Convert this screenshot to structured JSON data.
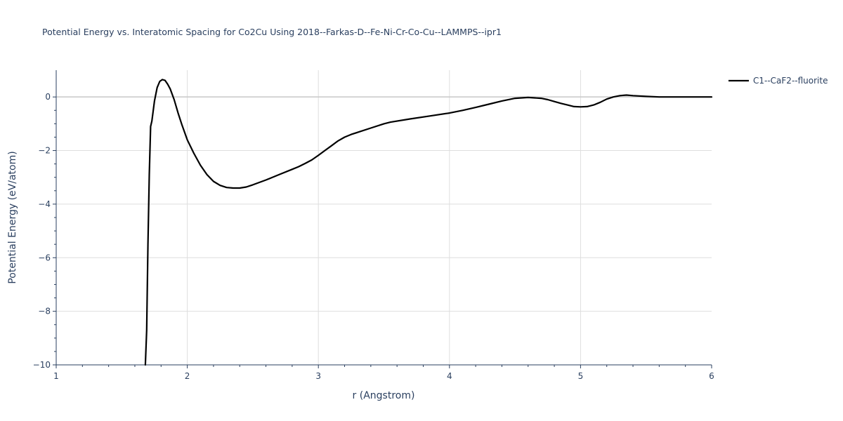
{
  "chart_data": {
    "type": "line",
    "title": "Potential Energy vs. Interatomic Spacing for Co2Cu Using 2018--Farkas-D--Fe-Ni-Cr-Co-Cu--LAMMPS--ipr1",
    "xlabel": "r (Angstrom)",
    "ylabel": "Potential Energy (eV/atom)",
    "xlim": [
      1,
      6
    ],
    "ylim": [
      -10,
      1
    ],
    "x_ticks": [
      1,
      2,
      3,
      4,
      5,
      6
    ],
    "x_tick_labels": [
      "1",
      "2",
      "3",
      "4",
      "5",
      "6"
    ],
    "y_ticks": [
      0,
      -2,
      -4,
      -6,
      -8,
      -10
    ],
    "y_tick_labels": [
      "0",
      "−2",
      "−4",
      "−6",
      "−8",
      "−10"
    ],
    "grid": true,
    "legend_position": "top-right",
    "series": [
      {
        "name": "C1--CaF2--fluorite",
        "color": "#000000",
        "x": [
          1.68,
          1.69,
          1.7,
          1.71,
          1.72,
          1.73,
          1.75,
          1.77,
          1.79,
          1.81,
          1.83,
          1.85,
          1.87,
          1.9,
          1.93,
          1.96,
          2.0,
          2.05,
          2.1,
          2.15,
          2.2,
          2.25,
          2.3,
          2.35,
          2.4,
          2.45,
          2.5,
          2.6,
          2.7,
          2.8,
          2.85,
          2.9,
          2.95,
          3.0,
          3.05,
          3.1,
          3.15,
          3.2,
          3.25,
          3.3,
          3.4,
          3.5,
          3.55,
          3.7,
          3.85,
          4.0,
          4.1,
          4.2,
          4.3,
          4.4,
          4.5,
          4.6,
          4.7,
          4.75,
          4.8,
          4.85,
          4.9,
          4.95,
          5.0,
          5.05,
          5.1,
          5.15,
          5.2,
          5.25,
          5.3,
          5.35,
          5.4,
          5.5,
          5.6,
          5.7,
          5.8,
          6.0
        ],
        "y": [
          -10.0,
          -8.7,
          -5.5,
          -2.9,
          -1.1,
          -0.9,
          -0.15,
          0.35,
          0.58,
          0.65,
          0.62,
          0.48,
          0.3,
          -0.1,
          -0.6,
          -1.05,
          -1.6,
          -2.1,
          -2.55,
          -2.9,
          -3.15,
          -3.3,
          -3.38,
          -3.4,
          -3.4,
          -3.36,
          -3.28,
          -3.1,
          -2.9,
          -2.7,
          -2.6,
          -2.48,
          -2.35,
          -2.18,
          -2.0,
          -1.82,
          -1.64,
          -1.5,
          -1.4,
          -1.32,
          -1.16,
          -1.0,
          -0.94,
          -0.82,
          -0.71,
          -0.6,
          -0.5,
          -0.39,
          -0.27,
          -0.15,
          -0.05,
          -0.02,
          -0.05,
          -0.1,
          -0.17,
          -0.24,
          -0.3,
          -0.36,
          -0.37,
          -0.36,
          -0.3,
          -0.2,
          -0.08,
          0.0,
          0.05,
          0.07,
          0.05,
          0.02,
          0.0,
          0.0,
          0.0,
          0.0
        ]
      }
    ]
  }
}
